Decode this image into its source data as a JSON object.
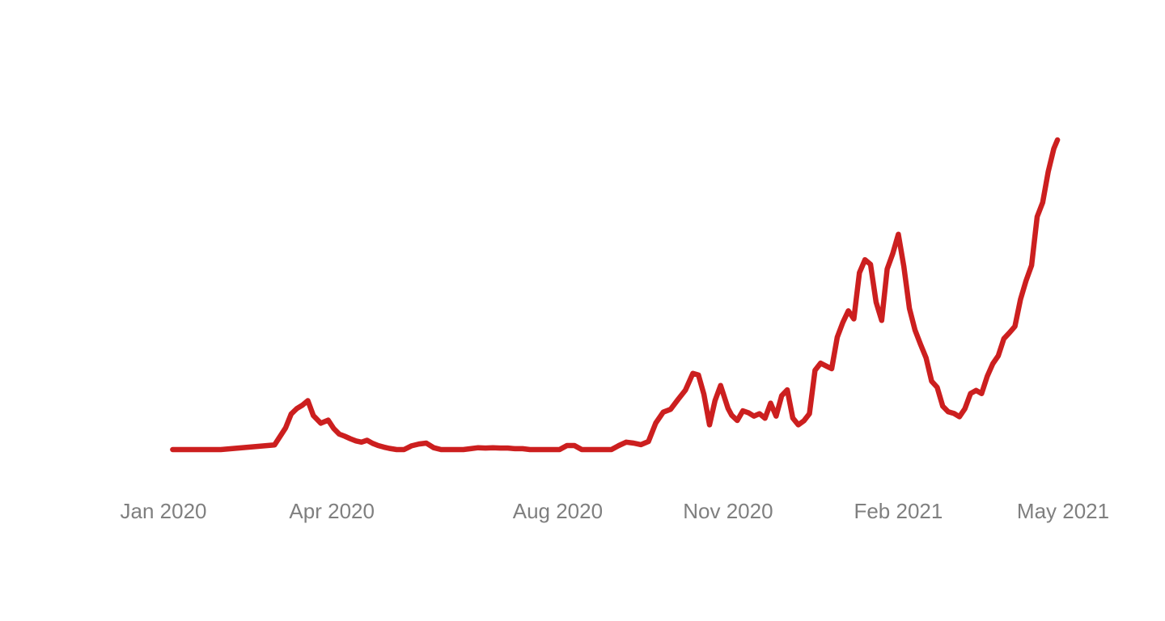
{
  "chart_data": {
    "type": "line",
    "title": "",
    "xlabel": "",
    "ylabel": "",
    "grid": false,
    "legend": false,
    "y_axis_labels_shown": false,
    "color": "#cc1f1f",
    "x_ticks": [
      "Jan 2020",
      "Apr 2020",
      "Aug 2020",
      "Nov 2020",
      "Feb 2021",
      "May 2021"
    ],
    "tick_dates": [
      "2020-01-01",
      "2020-04-01",
      "2020-08-01",
      "2020-11-01",
      "2021-02-01",
      "2021-05-01"
    ],
    "ylim": [
      0,
      100
    ],
    "series": [
      {
        "name": "",
        "x": [
          "2020-01-06",
          "2020-02-01",
          "2020-03-01",
          "2020-03-07",
          "2020-03-10",
          "2020-03-13",
          "2020-03-16",
          "2020-03-19",
          "2020-03-22",
          "2020-03-26",
          "2020-03-30",
          "2020-04-02",
          "2020-04-05",
          "2020-04-08",
          "2020-04-11",
          "2020-04-14",
          "2020-04-17",
          "2020-04-20",
          "2020-04-23",
          "2020-04-26",
          "2020-04-29",
          "2020-05-02",
          "2020-05-06",
          "2020-05-10",
          "2020-05-14",
          "2020-05-18",
          "2020-05-22",
          "2020-05-26",
          "2020-05-30",
          "2020-06-03",
          "2020-06-07",
          "2020-06-11",
          "2020-06-15",
          "2020-06-19",
          "2020-06-23",
          "2020-06-27",
          "2020-07-01",
          "2020-07-05",
          "2020-07-09",
          "2020-07-13",
          "2020-07-17",
          "2020-07-21",
          "2020-07-25",
          "2020-07-29",
          "2020-08-02",
          "2020-08-06",
          "2020-08-10",
          "2020-08-14",
          "2020-08-18",
          "2020-08-22",
          "2020-08-26",
          "2020-08-30",
          "2020-09-03",
          "2020-09-07",
          "2020-09-11",
          "2020-09-15",
          "2020-09-19",
          "2020-09-23",
          "2020-09-27",
          "2020-10-01",
          "2020-10-05",
          "2020-10-09",
          "2020-10-13",
          "2020-10-16",
          "2020-10-19",
          "2020-10-22",
          "2020-10-25",
          "2020-10-28",
          "2020-11-01",
          "2020-11-03",
          "2020-11-06",
          "2020-11-09",
          "2020-11-12",
          "2020-11-15",
          "2020-11-18",
          "2020-11-21",
          "2020-11-24",
          "2020-11-27",
          "2020-11-30",
          "2020-12-03",
          "2020-12-06",
          "2020-12-09",
          "2020-12-12",
          "2020-12-15",
          "2020-12-18",
          "2020-12-21",
          "2020-12-24",
          "2020-12-27",
          "2020-12-30",
          "2021-01-02",
          "2021-01-05",
          "2021-01-08",
          "2021-01-11",
          "2021-01-14",
          "2021-01-17",
          "2021-01-20",
          "2021-01-23",
          "2021-01-26",
          "2021-01-29",
          "2021-02-01",
          "2021-02-04",
          "2021-02-07",
          "2021-02-10",
          "2021-02-13",
          "2021-02-16",
          "2021-02-19",
          "2021-02-22",
          "2021-02-25",
          "2021-02-28",
          "2021-03-03",
          "2021-03-06",
          "2021-03-09",
          "2021-03-12",
          "2021-03-15",
          "2021-03-18",
          "2021-03-21",
          "2021-03-24",
          "2021-03-27",
          "2021-03-30",
          "2021-04-02",
          "2021-04-05",
          "2021-04-08",
          "2021-04-11",
          "2021-04-14",
          "2021-04-17",
          "2021-04-20",
          "2021-04-23",
          "2021-04-26",
          "2021-04-28"
        ],
        "y": [
          0.0,
          0.0,
          1.5,
          7.0,
          11.5,
          13.2,
          14.3,
          15.8,
          11.0,
          8.5,
          9.5,
          6.8,
          5.0,
          4.3,
          3.5,
          2.8,
          2.4,
          3.0,
          2.0,
          1.3,
          0.8,
          0.4,
          0.0,
          0.0,
          1.2,
          1.8,
          2.1,
          0.6,
          0.0,
          0.0,
          0.0,
          0.0,
          0.3,
          0.6,
          0.5,
          0.6,
          0.5,
          0.5,
          0.3,
          0.3,
          0.0,
          0.0,
          0.0,
          0.0,
          0.0,
          1.3,
          1.3,
          0.0,
          0.0,
          0.0,
          0.0,
          0.0,
          1.3,
          2.4,
          2.1,
          1.6,
          2.6,
          8.6,
          12.1,
          13.0,
          16.2,
          19.2,
          24.6,
          24.1,
          17.8,
          8.0,
          15.8,
          20.7,
          13.3,
          11.1,
          9.4,
          12.5,
          11.9,
          10.8,
          11.6,
          10.1,
          15.0,
          10.8,
          17.4,
          19.3,
          10.2,
          8.0,
          9.3,
          11.6,
          25.6,
          27.9,
          27.0,
          26.1,
          36.3,
          41.0,
          44.8,
          42.2,
          57.1,
          61.3,
          59.8,
          47.6,
          41.7,
          58.3,
          63.3,
          69.5,
          59.1,
          45.6,
          38.6,
          34.0,
          29.6,
          22.1,
          20.1,
          14.0,
          12.2,
          11.7,
          10.6,
          13.2,
          18.1,
          19.1,
          18.1,
          23.6,
          27.7,
          30.3,
          35.8,
          37.7,
          39.8,
          48.5,
          54.5,
          59.5,
          75.2,
          79.8,
          89.8,
          97.2,
          100.0
        ]
      }
    ]
  }
}
